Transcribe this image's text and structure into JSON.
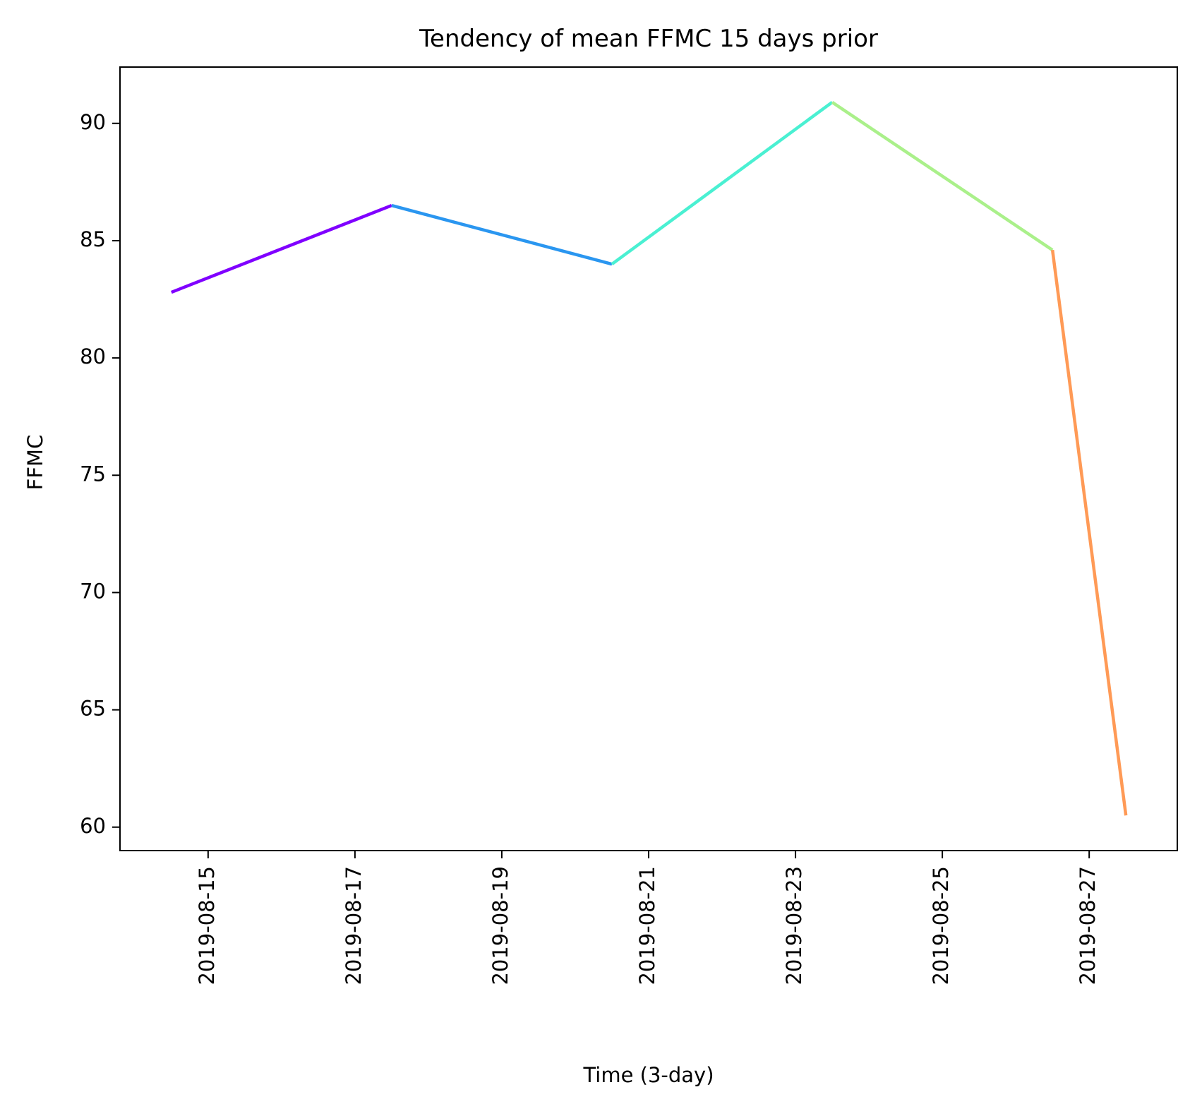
{
  "chart_data": {
    "type": "line",
    "title": "Tendency of mean FFMC 15 days prior",
    "xlabel": "Time (3-day)",
    "ylabel": "FFMC",
    "x_tick_labels": [
      "2019-08-15",
      "2019-08-17",
      "2019-08-19",
      "2019-08-21",
      "2019-08-23",
      "2019-08-25",
      "2019-08-27"
    ],
    "y_tick_labels": [
      "60",
      "65",
      "70",
      "75",
      "80",
      "85",
      "90"
    ],
    "xlim": [
      "2019-08-13T19:12",
      "2019-08-28T04:48"
    ],
    "ylim": [
      59.0,
      92.4
    ],
    "grid": false,
    "legend": "none",
    "points": [
      {
        "x": "2019-08-14T12:00",
        "y": 82.8
      },
      {
        "x": "2019-08-17T12:00",
        "y": 86.5
      },
      {
        "x": "2019-08-20T12:00",
        "y": 84.0
      },
      {
        "x": "2019-08-23T12:00",
        "y": 90.9
      },
      {
        "x": "2019-08-26T12:00",
        "y": 84.6
      },
      {
        "x": "2019-08-27T12:00",
        "y": 60.5
      }
    ],
    "segment_colors": [
      "#8000ff",
      "#2a96f0",
      "#4af0d2",
      "#aaf08a",
      "#ff9a56"
    ]
  }
}
